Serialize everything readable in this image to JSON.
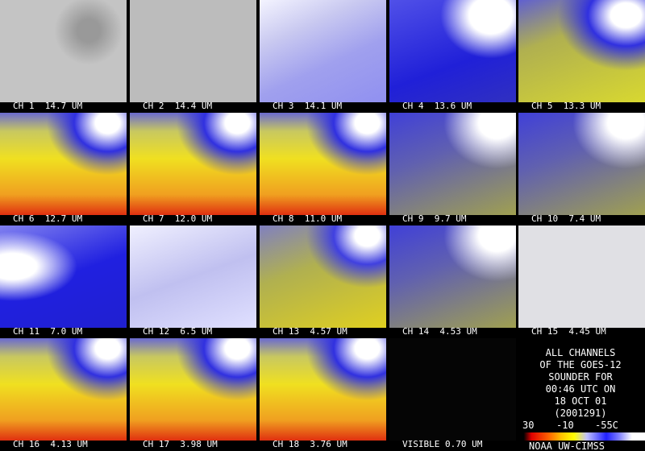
{
  "panels": [
    {
      "label": "CH 1  14.7 UM"
    },
    {
      "label": "CH 2  14.4 UM"
    },
    {
      "label": "CH 3  14.1 UM"
    },
    {
      "label": "CH 4  13.6 UM"
    },
    {
      "label": "CH 5  13.3 UM"
    },
    {
      "label": "CH 6  12.7 UM"
    },
    {
      "label": "CH 7  12.0 UM"
    },
    {
      "label": "CH 8  11.0 UM"
    },
    {
      "label": "CH 9  9.7 UM"
    },
    {
      "label": "CH 10  7.4 UM"
    },
    {
      "label": "CH 11  7.0 UM"
    },
    {
      "label": "CH 12  6.5 UM"
    },
    {
      "label": "CH 13  4.57 UM"
    },
    {
      "label": "CH 14  4.53 UM"
    },
    {
      "label": "CH 15  4.45 UM"
    },
    {
      "label": "CH 16  4.13 UM"
    },
    {
      "label": "CH 17  3.98 UM"
    },
    {
      "label": "CH 18  3.76 UM"
    },
    {
      "label": "VISIBLE 0.70 UM"
    }
  ],
  "info": {
    "lines": [
      "ALL CHANNELS",
      "OF THE GOES-12",
      "SOUNDER FOR",
      "00:46 UTC ON",
      "18 OCT 01",
      "(2001291)"
    ],
    "scale_labels": [
      "30",
      "-10",
      "-55C"
    ],
    "credit": "NOAA UW-CIMSS"
  }
}
